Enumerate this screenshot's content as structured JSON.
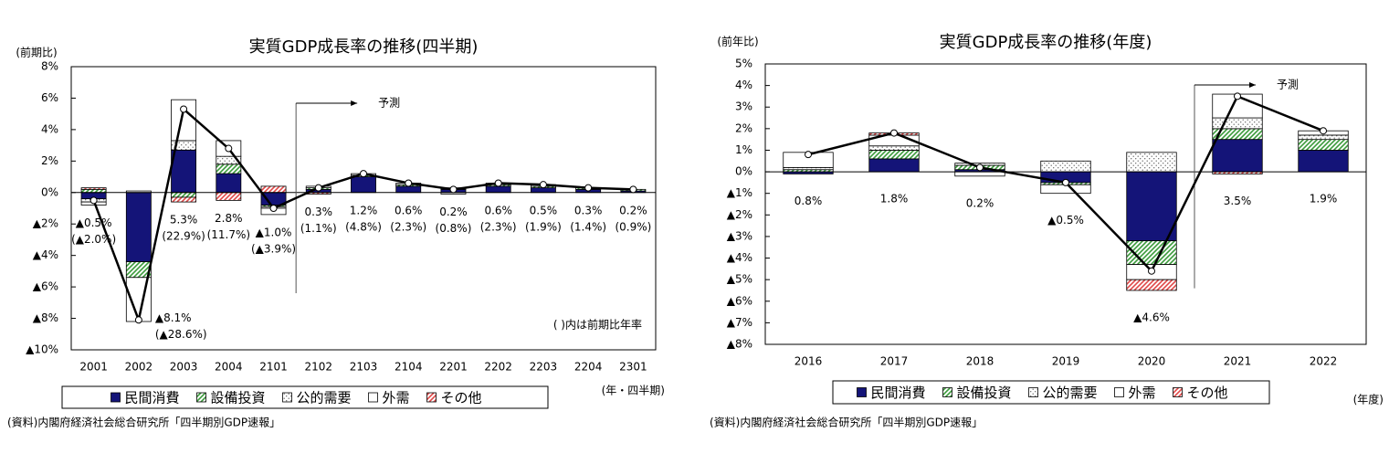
{
  "chart_data": [
    {
      "type": "bar",
      "stacked": true,
      "title": "実質GDP成長率の推移(四半期)",
      "y_label": "(前期比)",
      "x_label": "(年・四半期)",
      "note": "( )内は前期比年率",
      "source": "(資料)内閣府経済社会総合研究所「四半期別GDP速報」",
      "forecast": {
        "label": "予測",
        "start": "2102"
      },
      "categories": [
        "2001",
        "2002",
        "2003",
        "2004",
        "2101",
        "2102",
        "2103",
        "2104",
        "2201",
        "2202",
        "2203",
        "2204",
        "2301"
      ],
      "series": [
        {
          "name": "民間消費",
          "color": "#141478",
          "pattern": null,
          "values": [
            -0.4,
            -4.4,
            2.7,
            1.2,
            -0.8,
            0.2,
            1.0,
            0.4,
            0.2,
            0.4,
            0.3,
            0.2,
            0.1
          ]
        },
        {
          "name": "設備投資",
          "color": "#3a9a3a",
          "pattern": "hatch",
          "values": [
            0.2,
            -1.0,
            -0.3,
            0.6,
            -0.1,
            0.1,
            0.1,
            0.1,
            0.1,
            0.1,
            0.1,
            0.1,
            0.1
          ]
        },
        {
          "name": "公的需要",
          "color": "#666666",
          "pattern": "dots",
          "values": [
            -0.2,
            0.1,
            0.6,
            0.5,
            -0.1,
            0.1,
            0.0,
            0.0,
            0.0,
            0.0,
            0.0,
            0.0,
            0.0
          ]
        },
        {
          "name": "外需",
          "color": "#ffffff",
          "pattern": null,
          "values": [
            -0.2,
            -2.8,
            2.6,
            1.0,
            -0.4,
            0.0,
            0.1,
            0.1,
            -0.1,
            0.1,
            0.1,
            0.0,
            0.0
          ]
        },
        {
          "name": "その他",
          "color": "#e04848",
          "pattern": "hatch",
          "values": [
            0.1,
            0.0,
            -0.3,
            -0.5,
            0.4,
            -0.1,
            0.0,
            0.0,
            0.0,
            0.0,
            0.0,
            0.0,
            0.0
          ]
        }
      ],
      "line": {
        "color": "#000000",
        "values": [
          -0.5,
          -8.1,
          5.3,
          2.8,
          -1.0,
          0.3,
          1.2,
          0.6,
          0.2,
          0.6,
          0.5,
          0.3,
          0.2
        ],
        "value_labels": [
          "▲0.5%",
          "▲8.1%",
          "5.3%",
          "2.8%",
          "▲1.0%",
          "0.3%",
          "1.2%",
          "0.6%",
          "0.2%",
          "0.6%",
          "0.5%",
          "0.3%",
          "0.2%"
        ]
      },
      "annualized": {
        "values": [
          -2.0,
          -28.6,
          22.9,
          11.7,
          -3.9,
          1.1,
          4.8,
          2.3,
          0.8,
          2.3,
          1.9,
          1.4,
          0.9
        ],
        "value_labels": [
          "(▲2.0%)",
          "(▲28.6%)",
          "(22.9%)",
          "(11.7%)",
          "(▲3.9%)",
          "(1.1%)",
          "(4.8%)",
          "(2.3%)",
          "(0.8%)",
          "(2.3%)",
          "(1.9%)",
          "(1.4%)",
          "(0.9%)"
        ]
      },
      "ylim": [
        -10,
        8
      ],
      "yticks": [
        {
          "value": -10,
          "label": "▲10%"
        },
        {
          "value": -8,
          "label": "▲8%"
        },
        {
          "value": -6,
          "label": "▲6%"
        },
        {
          "value": -4,
          "label": "▲4%"
        },
        {
          "value": -2,
          "label": "▲2%"
        },
        {
          "value": 0,
          "label": "0%"
        },
        {
          "value": 2,
          "label": "2%"
        },
        {
          "value": 4,
          "label": "4%"
        },
        {
          "value": 6,
          "label": "6%"
        },
        {
          "value": 8,
          "label": "8%"
        }
      ]
    },
    {
      "type": "bar",
      "stacked": true,
      "title": "実質GDP成長率の推移(年度)",
      "y_label": "(前年比)",
      "x_label": "(年度)",
      "source": "(資料)内閣府経済社会総合研究所「四半期別GDP速報」",
      "forecast": {
        "label": "予測",
        "start": "2021"
      },
      "categories": [
        "2016",
        "2017",
        "2018",
        "2019",
        "2020",
        "2021",
        "2022"
      ],
      "series": [
        {
          "name": "民間消費",
          "color": "#141478",
          "pattern": null,
          "values": [
            -0.1,
            0.6,
            0.1,
            -0.5,
            -3.2,
            1.5,
            1.0
          ]
        },
        {
          "name": "設備投資",
          "color": "#3a9a3a",
          "pattern": "hatch",
          "values": [
            0.1,
            0.4,
            0.2,
            -0.1,
            -1.1,
            0.5,
            0.5
          ]
        },
        {
          "name": "公的需要",
          "color": "#666666",
          "pattern": "dots",
          "values": [
            0.1,
            0.2,
            0.1,
            0.5,
            0.9,
            0.5,
            0.2
          ]
        },
        {
          "name": "外需",
          "color": "#ffffff",
          "pattern": null,
          "values": [
            0.7,
            0.5,
            -0.2,
            -0.4,
            -0.7,
            1.1,
            0.2
          ]
        },
        {
          "name": "その他",
          "color": "#e04848",
          "pattern": "hatch",
          "values": [
            0.0,
            0.1,
            0.0,
            0.0,
            -0.5,
            -0.1,
            0.0
          ]
        }
      ],
      "line": {
        "color": "#000000",
        "values": [
          0.8,
          1.8,
          0.2,
          -0.5,
          -4.6,
          3.5,
          1.9
        ],
        "value_labels": [
          "0.8%",
          "1.8%",
          "0.2%",
          "▲0.5%",
          "▲4.6%",
          "3.5%",
          "1.9%"
        ]
      },
      "ylim": [
        -8,
        5
      ],
      "yticks": [
        {
          "value": -8,
          "label": "▲8%"
        },
        {
          "value": -7,
          "label": "▲7%"
        },
        {
          "value": -6,
          "label": "▲6%"
        },
        {
          "value": -5,
          "label": "▲5%"
        },
        {
          "value": -4,
          "label": "▲4%"
        },
        {
          "value": -3,
          "label": "▲3%"
        },
        {
          "value": -2,
          "label": "▲2%"
        },
        {
          "value": -1,
          "label": "▲1%"
        },
        {
          "value": 0,
          "label": "0%"
        },
        {
          "value": 1,
          "label": "1%"
        },
        {
          "value": 2,
          "label": "2%"
        },
        {
          "value": 3,
          "label": "3%"
        },
        {
          "value": 4,
          "label": "4%"
        },
        {
          "value": 5,
          "label": "5%"
        }
      ]
    }
  ]
}
